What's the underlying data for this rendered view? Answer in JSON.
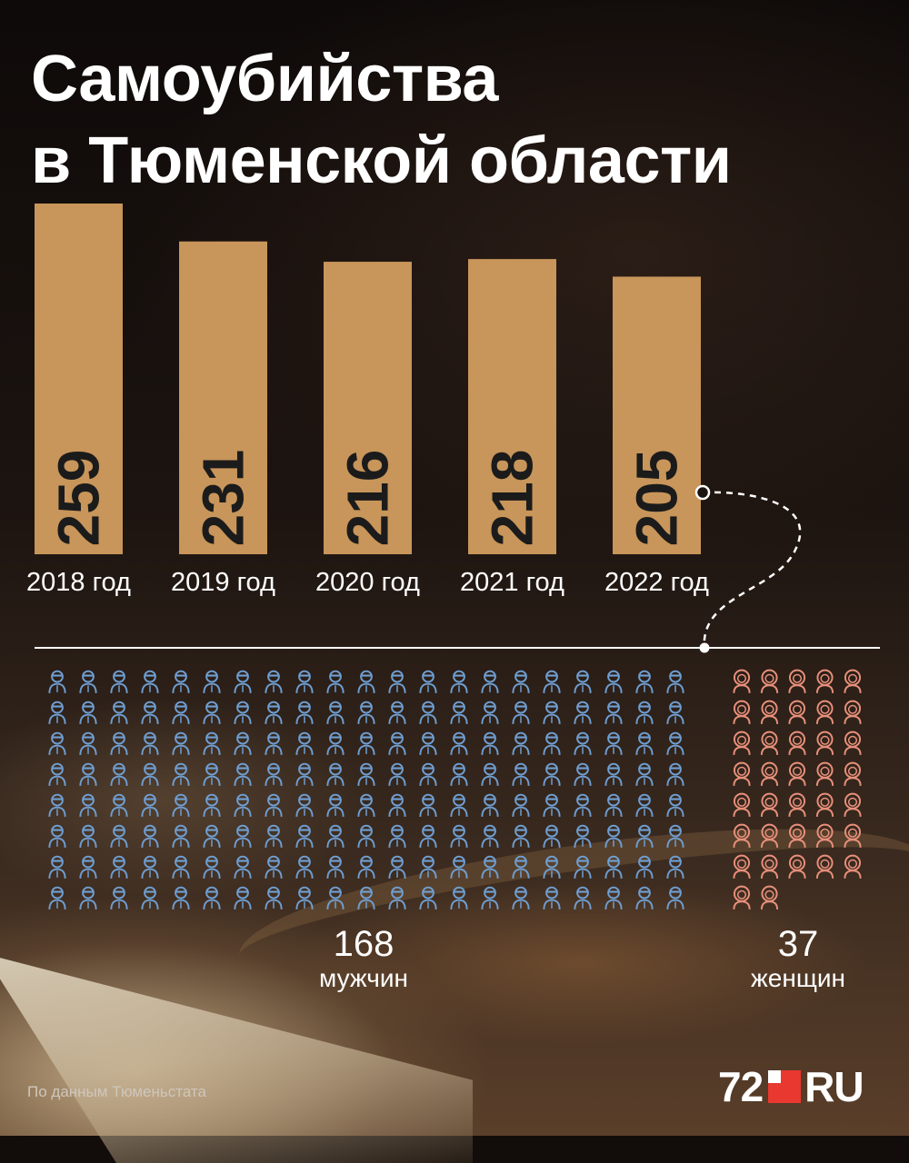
{
  "title": {
    "line1": "Самоубийства",
    "line2": "в Тюменской области"
  },
  "colors": {
    "bar": "#c8955a",
    "bar_label": "#1b1b1b",
    "men_icon": "#6f9ed1",
    "women_icon": "#e8907b",
    "text": "#ffffff"
  },
  "chart_data": [
    {
      "type": "bar",
      "categories": [
        "2018 год",
        "2019 год",
        "2020 год",
        "2021 год",
        "2022 год"
      ],
      "values": [
        259,
        231,
        216,
        218,
        205
      ],
      "value_labels_rotated": true,
      "title": "Самоубийства в Тюменской области",
      "xlabel": "",
      "ylabel": "",
      "grid": false,
      "legend": "none"
    },
    {
      "type": "pictogram",
      "year": "2022 год",
      "groups": [
        {
          "count": 168,
          "value_label": "168",
          "label": "мужчин",
          "icon": "man-icon",
          "color": "#6f9ed1"
        },
        {
          "count": 37,
          "value_label": "37",
          "label": "женщин",
          "icon": "woman-icon",
          "color": "#e8907b"
        }
      ]
    }
  ],
  "footer": {
    "source": "По данным Тюменьстата",
    "logo_left": "72",
    "logo_right": "RU"
  }
}
